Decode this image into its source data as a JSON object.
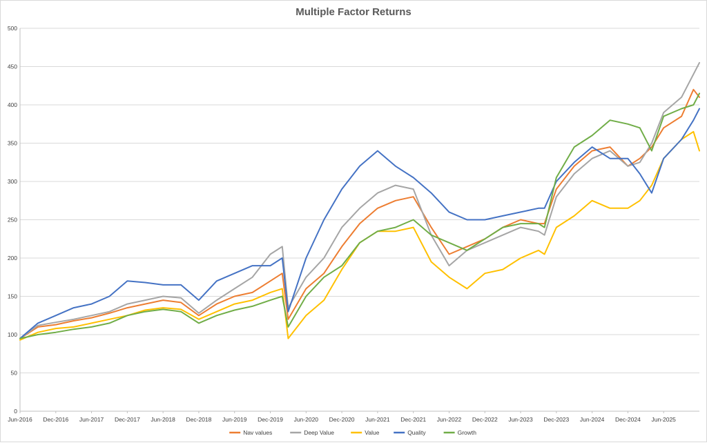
{
  "chart_data": {
    "type": "line",
    "title": "Multiple Factor Returns",
    "xlabel": "",
    "ylabel": "",
    "ylim": [
      0,
      500
    ],
    "yticks": [
      0,
      50,
      100,
      150,
      200,
      250,
      300,
      350,
      400,
      450,
      500
    ],
    "xlim": [
      "2016-06",
      "2025-12"
    ],
    "xticks": [
      "Jun-2016",
      "Dec-2016",
      "Jun-2017",
      "Dec-2017",
      "Jun-2018",
      "Dec-2018",
      "Jun-2019",
      "Dec-2019",
      "Jun-2020",
      "Dec-2020",
      "Jun-2021",
      "Dec-2021",
      "Jun-2022",
      "Dec-2022",
      "Jun-2023",
      "Dec-2023",
      "Jun-2024",
      "Dec-2024",
      "Jun-2025"
    ],
    "grid": true,
    "legend_position": "bottom",
    "x": [
      "2016-06",
      "2016-09",
      "2016-12",
      "2017-03",
      "2017-06",
      "2017-09",
      "2017-12",
      "2018-03",
      "2018-06",
      "2018-09",
      "2018-12",
      "2019-03",
      "2019-06",
      "2019-09",
      "2019-12",
      "2020-02",
      "2020-03",
      "2020-06",
      "2020-09",
      "2020-12",
      "2021-03",
      "2021-06",
      "2021-09",
      "2021-12",
      "2022-03",
      "2022-06",
      "2022-09",
      "2022-12",
      "2023-03",
      "2023-06",
      "2023-09",
      "2023-10",
      "2023-12",
      "2024-03",
      "2024-06",
      "2024-09",
      "2024-12",
      "2025-02",
      "2025-04",
      "2025-06",
      "2025-09",
      "2025-11",
      "2025-12"
    ],
    "series": [
      {
        "name": "Nav values",
        "color": "#ED7D31",
        "values": [
          95,
          110,
          113,
          118,
          122,
          128,
          135,
          140,
          145,
          142,
          125,
          140,
          150,
          155,
          170,
          180,
          120,
          160,
          180,
          215,
          245,
          265,
          275,
          280,
          240,
          205,
          215,
          225,
          240,
          250,
          245,
          245,
          290,
          320,
          340,
          345,
          320,
          330,
          345,
          370,
          385,
          420,
          410
        ]
      },
      {
        "name": "Deep Value",
        "color": "#A5A5A5",
        "values": [
          95,
          112,
          116,
          120,
          125,
          130,
          140,
          145,
          150,
          148,
          128,
          145,
          160,
          175,
          205,
          215,
          135,
          175,
          200,
          240,
          265,
          285,
          295,
          290,
          230,
          190,
          210,
          220,
          230,
          240,
          235,
          230,
          280,
          310,
          330,
          340,
          320,
          325,
          350,
          390,
          410,
          440,
          455
        ]
      },
      {
        "name": "Value",
        "color": "#FFC000",
        "values": [
          93,
          103,
          108,
          110,
          115,
          120,
          125,
          132,
          135,
          133,
          120,
          130,
          140,
          145,
          155,
          160,
          95,
          125,
          145,
          185,
          220,
          235,
          235,
          240,
          195,
          175,
          160,
          180,
          185,
          200,
          210,
          205,
          240,
          255,
          275,
          265,
          265,
          275,
          295,
          330,
          355,
          365,
          340
        ]
      },
      {
        "name": "Quality",
        "color": "#4472C4",
        "values": [
          95,
          115,
          125,
          135,
          140,
          150,
          170,
          168,
          165,
          165,
          145,
          170,
          180,
          190,
          190,
          200,
          130,
          200,
          250,
          290,
          320,
          340,
          320,
          305,
          285,
          260,
          250,
          250,
          255,
          260,
          265,
          265,
          300,
          325,
          345,
          330,
          330,
          310,
          285,
          330,
          355,
          380,
          395
        ]
      },
      {
        "name": "Growth",
        "color": "#70AD47",
        "values": [
          95,
          100,
          103,
          107,
          110,
          115,
          125,
          130,
          133,
          130,
          115,
          125,
          132,
          137,
          145,
          150,
          110,
          150,
          175,
          190,
          220,
          235,
          240,
          250,
          230,
          220,
          210,
          225,
          240,
          245,
          245,
          240,
          305,
          345,
          360,
          380,
          375,
          370,
          340,
          385,
          395,
          400,
          415
        ]
      }
    ]
  }
}
